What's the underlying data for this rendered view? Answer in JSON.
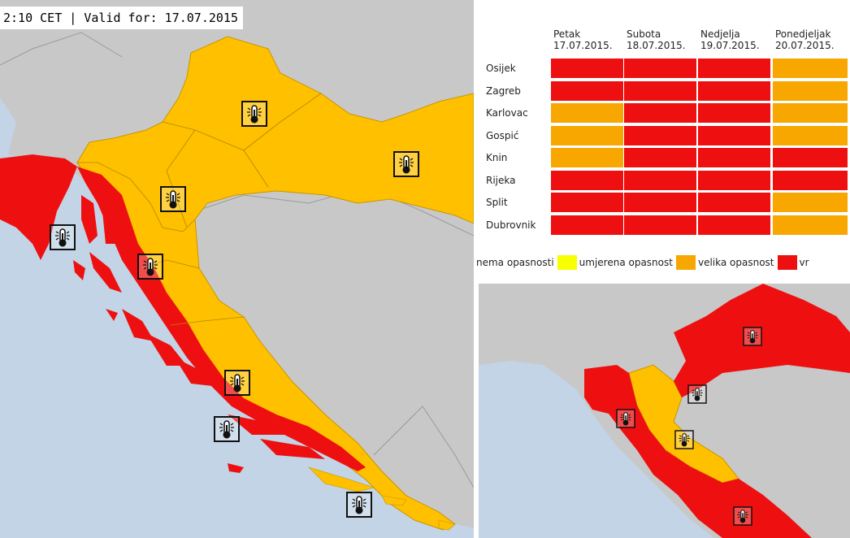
{
  "header": {
    "text": "2:10 CET | Valid for: 17.07.2015"
  },
  "colors": {
    "sea": "#c2d4e6",
    "land": "#c8c8c8",
    "yellow": "#f7ff00",
    "orange": "#ffc000",
    "orange_cell": "#f8a700",
    "red": "#ee1010"
  },
  "table": {
    "days": [
      {
        "name": "Petak",
        "date": "17.07.2015."
      },
      {
        "name": "Subota",
        "date": "18.07.2015."
      },
      {
        "name": "Nedjelja",
        "date": "19.07.2015."
      },
      {
        "name": "Ponedjeljak",
        "date": "20.07.2015."
      }
    ],
    "rows": [
      {
        "city": "Osijek",
        "levels": [
          "vrlo velika",
          "vrlo velika",
          "vrlo velika",
          "velika"
        ]
      },
      {
        "city": "Zagreb",
        "levels": [
          "vrlo velika",
          "vrlo velika",
          "vrlo velika",
          "velika"
        ]
      },
      {
        "city": "Karlovac",
        "levels": [
          "velika",
          "vrlo velika",
          "vrlo velika",
          "velika"
        ]
      },
      {
        "city": "Gospić",
        "levels": [
          "velika",
          "vrlo velika",
          "vrlo velika",
          "velika"
        ]
      },
      {
        "city": "Knin",
        "levels": [
          "velika",
          "vrlo velika",
          "vrlo velika",
          "vrlo velika"
        ]
      },
      {
        "city": "Rijeka",
        "levels": [
          "vrlo velika",
          "vrlo velika",
          "vrlo velika",
          "vrlo velika"
        ]
      },
      {
        "city": "Split",
        "levels": [
          "vrlo velika",
          "vrlo velika",
          "vrlo velika",
          "velika"
        ]
      },
      {
        "city": "Dubrovnik",
        "levels": [
          "vrlo velika",
          "vrlo velika",
          "vrlo velika",
          "velika"
        ]
      }
    ]
  },
  "legend": [
    {
      "label": "nema opasnosti",
      "color": "#f7ff00"
    },
    {
      "label": "umjerena opasnost",
      "color": "#f8a700"
    },
    {
      "label": "velika opasnost",
      "color": "#ee1010"
    },
    {
      "label": "vr",
      "color": ""
    }
  ],
  "icons": {
    "type": "thermometer-warning-icon"
  }
}
